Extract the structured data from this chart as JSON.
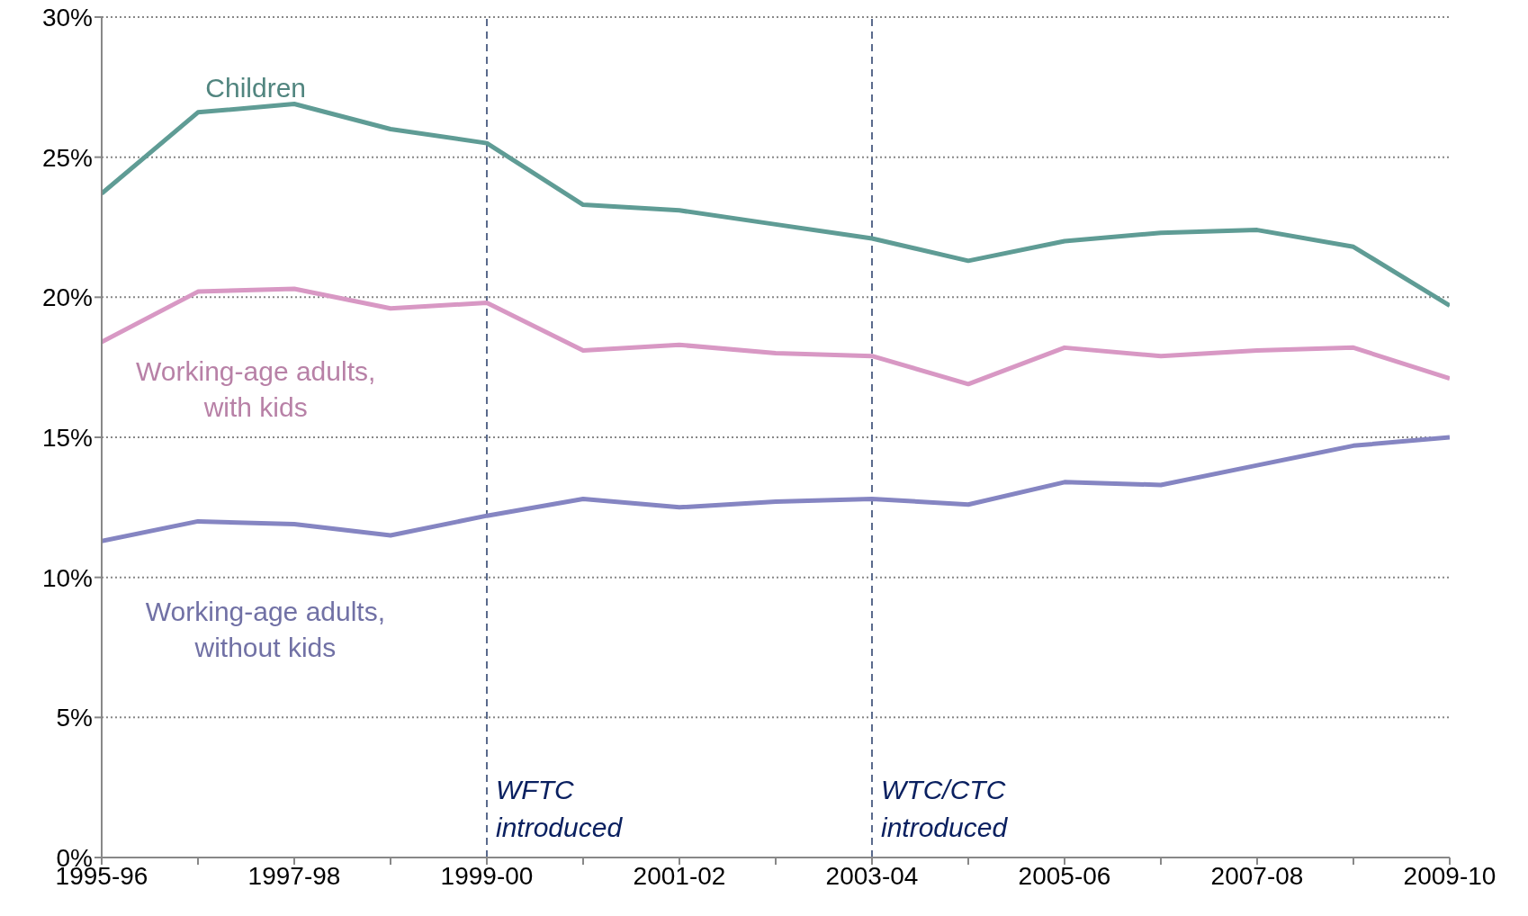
{
  "chart_data": {
    "type": "line",
    "categories": [
      "1995-96",
      null,
      "1997-98",
      null,
      "1999-00",
      null,
      "2001-02",
      null,
      "2003-04",
      null,
      "2005-06",
      null,
      "2007-08",
      null,
      "2009-10"
    ],
    "series": [
      {
        "name": "Children",
        "color": "#5f9c95",
        "values": [
          23.7,
          26.6,
          26.9,
          26.0,
          25.5,
          23.3,
          23.1,
          22.6,
          22.1,
          21.3,
          22.0,
          22.3,
          22.4,
          21.8,
          19.7
        ]
      },
      {
        "name": "Working-age adults, with kids",
        "color": "#d898c4",
        "values": [
          18.4,
          20.2,
          20.3,
          19.6,
          19.8,
          18.1,
          18.3,
          18.0,
          17.9,
          16.9,
          18.2,
          17.9,
          18.1,
          18.2,
          17.1
        ]
      },
      {
        "name": "Working-age adults, without kids",
        "color": "#8585c2",
        "values": [
          11.3,
          12.0,
          11.9,
          11.5,
          12.2,
          12.8,
          12.5,
          12.7,
          12.8,
          12.6,
          13.4,
          13.3,
          14.0,
          14.7,
          15.0
        ]
      }
    ],
    "ylim": [
      0,
      30
    ],
    "yticks": [
      {
        "value": 0,
        "label": "0%"
      },
      {
        "value": 5,
        "label": "5%"
      },
      {
        "value": 10,
        "label": "10%"
      },
      {
        "value": 15,
        "label": "15%"
      },
      {
        "value": 20,
        "label": "20%"
      },
      {
        "value": 25,
        "label": "25%"
      },
      {
        "value": 30,
        "label": "30%"
      }
    ],
    "ref_lines": [
      {
        "axis": "x",
        "value": "1999-00",
        "label": "WFTC introduced",
        "color": "#5a6a8c",
        "line_style": "dashed"
      },
      {
        "axis": "x",
        "value": "2003-04",
        "label": "WTC/CTC introduced",
        "color": "#5a6a8c",
        "line_style": "dashed"
      }
    ],
    "grid": "y",
    "legend": false,
    "marker": "none",
    "line_style": "solid"
  }
}
